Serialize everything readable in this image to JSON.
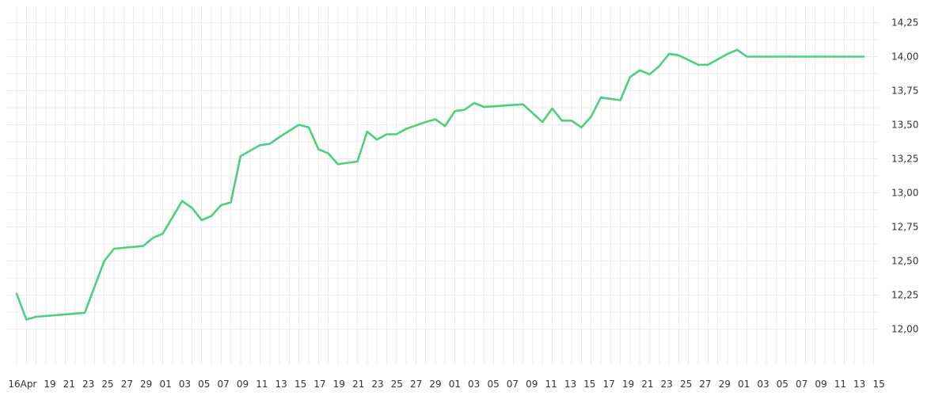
{
  "chart_data": {
    "type": "line",
    "title": "",
    "xlabel": "",
    "ylabel": "",
    "ylim": [
      11.8,
      14.32
    ],
    "y_ticks": [
      "14,25",
      "14,00",
      "13,75",
      "13,50",
      "13,25",
      "13,00",
      "12,75",
      "12,50",
      "12,25",
      "12,00"
    ],
    "y_tick_values": [
      14.25,
      14.0,
      13.75,
      13.5,
      13.25,
      13.0,
      12.75,
      12.5,
      12.25,
      12.0
    ],
    "x_ticks": [
      "16",
      "Apr",
      "19",
      "21",
      "23",
      "25",
      "27",
      "29",
      "01",
      "03",
      "05",
      "07",
      "09",
      "11",
      "13",
      "15",
      "17",
      "19",
      "21",
      "23",
      "25",
      "27",
      "29",
      "01",
      "03",
      "05",
      "07",
      "09",
      "11",
      "13",
      "15",
      "17",
      "19",
      "21",
      "23",
      "25",
      "27",
      "29",
      "01",
      "03",
      "05",
      "07",
      "09",
      "11",
      "13",
      "15"
    ],
    "grid": true,
    "legend": "none",
    "colors": {
      "line": "#4cd07d",
      "grid": "#ebebeb",
      "text": "#333333"
    },
    "series": [
      {
        "x": [
          0,
          1,
          2,
          7,
          9,
          10,
          13,
          14,
          15,
          17,
          18,
          19,
          20,
          21,
          22,
          23,
          25,
          26,
          27,
          29,
          30,
          31,
          32,
          33,
          35,
          36,
          37,
          38,
          39,
          40,
          42,
          43,
          44,
          45,
          46,
          47,
          48,
          52,
          54,
          55,
          56,
          57,
          58,
          59,
          60,
          62,
          63,
          64,
          65,
          66,
          67,
          68,
          70,
          71,
          73,
          74,
          75,
          76,
          77,
          78,
          79,
          81,
          82,
          84,
          85,
          86,
          87
        ],
        "y": [
          12.26,
          12.07,
          12.09,
          12.12,
          12.5,
          12.59,
          12.61,
          12.67,
          12.7,
          12.94,
          12.89,
          12.8,
          12.83,
          12.91,
          12.93,
          13.27,
          13.35,
          13.36,
          13.41,
          13.5,
          13.48,
          13.32,
          13.29,
          13.21,
          13.23,
          13.45,
          13.39,
          13.43,
          13.43,
          13.47,
          13.52,
          13.54,
          13.49,
          13.6,
          13.61,
          13.66,
          13.63,
          13.65,
          13.52,
          13.62,
          13.53,
          13.53,
          13.48,
          13.56,
          13.7,
          13.68,
          13.85,
          13.9,
          13.87,
          13.93,
          14.02,
          14.01,
          13.94,
          13.94,
          14.02,
          14.05,
          14.0,
          14.0,
          14.0,
          14.0,
          14.0,
          14.0,
          14.0,
          14.0,
          14.0,
          14.0,
          14.0
        ]
      }
    ]
  }
}
